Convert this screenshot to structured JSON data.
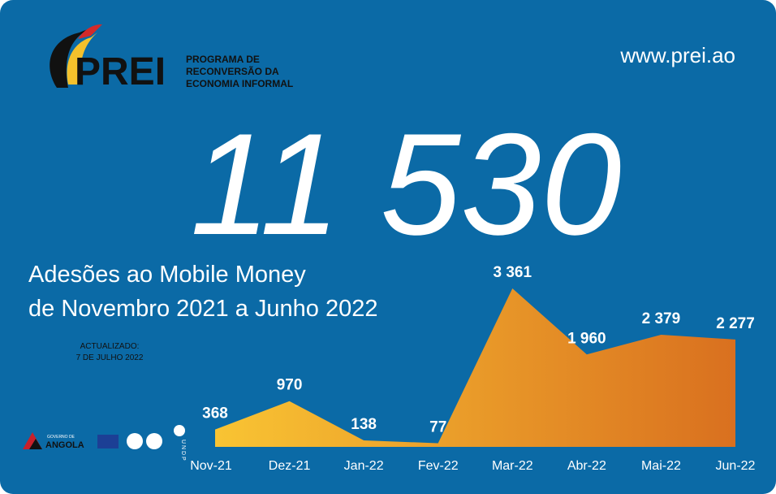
{
  "header": {
    "logo": "PREI",
    "program_lines": [
      "PROGRAMA DE",
      "RECONVERSÃO DA",
      "ECONOMIA INFORMAL"
    ],
    "website": "www.prei.ao"
  },
  "headline": "11 530",
  "subtitle_lines": [
    "Adesões ao Mobile Money",
    "de Novembro 2021 a Junho 2022"
  ],
  "updated_lines": [
    "ACTUALIZADO:",
    "7 DE JULHO 2022"
  ],
  "footer": {
    "governo": "GOVERNO DE",
    "angola": "ANGOLA",
    "undp": "U N D P"
  },
  "chart_data": {
    "type": "area",
    "categories": [
      "Nov-21",
      "Dez-21",
      "Jan-22",
      "Fev-22",
      "Mar-22",
      "Abr-22",
      "Mai-22",
      "Jun-22"
    ],
    "values": [
      368,
      970,
      138,
      77,
      3361,
      1960,
      2379,
      2277
    ],
    "value_labels": [
      "368",
      "970",
      "138",
      "77",
      "3 361",
      "1 960",
      "2 379",
      "2 277"
    ],
    "colors": [
      "#f9c433",
      "#d9701f"
    ]
  }
}
